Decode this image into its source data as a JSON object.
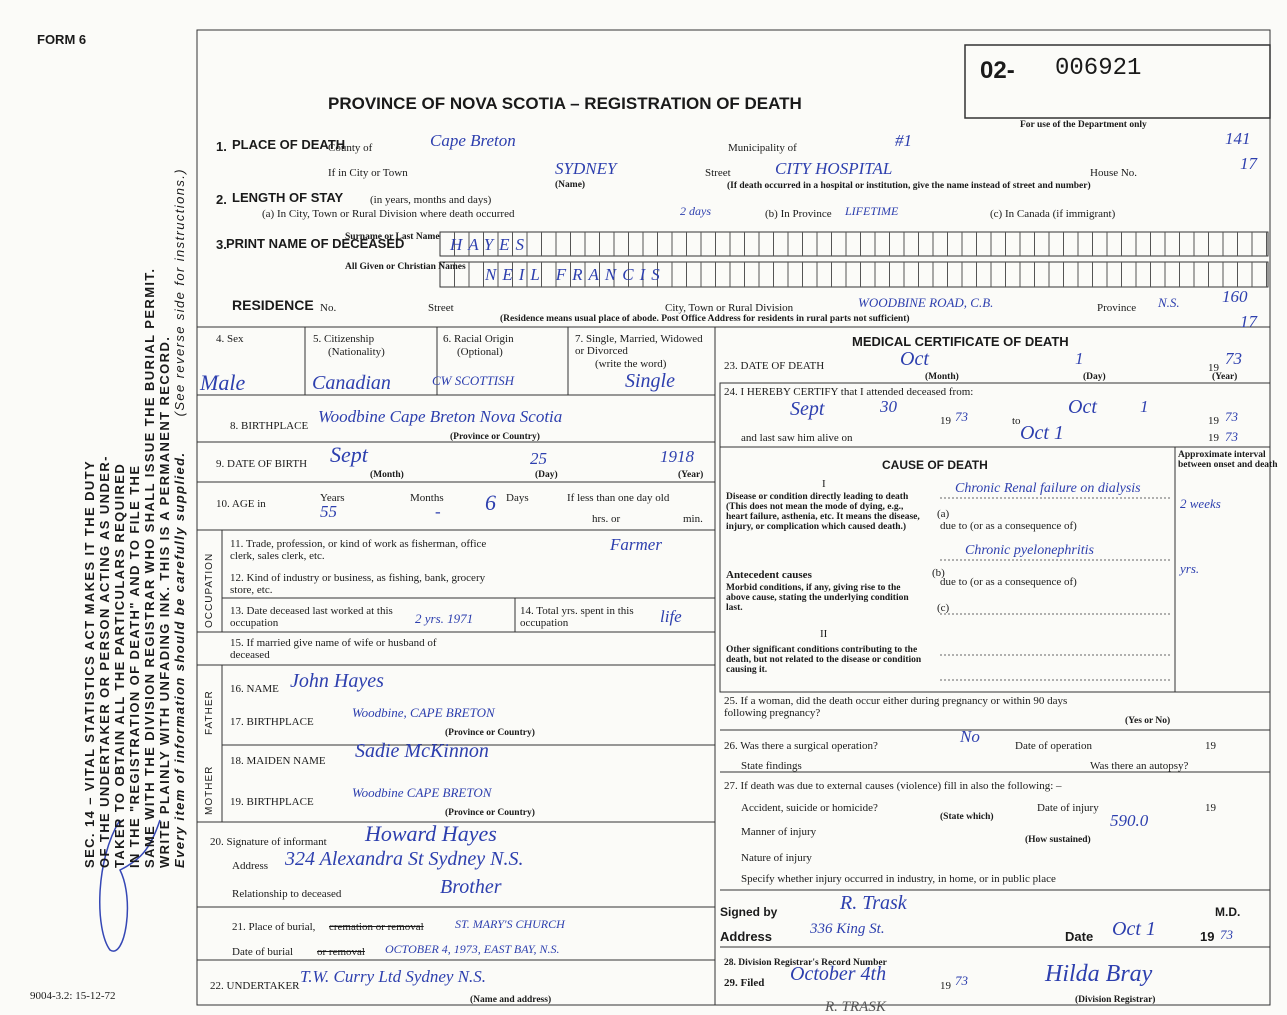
{
  "header": {
    "form": "FORM 6",
    "prefix": "02-",
    "serial": "006921",
    "title": "PROVINCE OF NOVA SCOTIA – REGISTRATION OF DEATH",
    "dept_note": "For use of the Department only",
    "dept_codes": [
      "141",
      "17",
      "160",
      "17"
    ]
  },
  "side": {
    "act": [
      "SEC. 14 – VITAL STATISTICS ACT MAKES IT THE DUTY",
      "OF THE UNDERTAKER OR PERSON ACTING AS UNDER-",
      "TAKER TO OBTAIN ALL THE PARTICULARS REQUIRED",
      "IN THE \"REGISTRATION OF DEATH\" AND TO FILE THE",
      "SAME WITH THE DIVISION REGISTRAR WHO SHALL ISSUE THE BURIAL PERMIT.",
      "WRITE PLAINLY WITH UNFADING INK. THIS IS A PERMANENT RECORD."
    ],
    "supply": "Every item of information should be carefully supplied.",
    "reverse": "(See reverse side for instructions.)",
    "code": "9004-3.2: 15-12-72"
  },
  "place": {
    "num": "1.",
    "heading": "PLACE OF DEATH",
    "county_label": "County of",
    "county": "Cape Breton",
    "municipality_label": "Municipality of",
    "municipality": "#1",
    "city_label": "If in City or Town",
    "city": "SYDNEY",
    "name_note": "(Name)",
    "street_label": "Street",
    "street": "CITY HOSPITAL",
    "house_label": "House No.",
    "hospital_note": "(If death occurred in a hospital or institution, give the name instead of street and number)"
  },
  "stay": {
    "num": "2.",
    "heading": "LENGTH OF STAY",
    "units": "(in years, months and days)",
    "a_label": "(a) In City, Town or Rural Division where death occurred",
    "a_value": "2 days",
    "b_label": "(b) In Province",
    "b_value": "LIFETIME",
    "c_label": "(c) In Canada (if immigrant)"
  },
  "name": {
    "num": "3.",
    "heading": "PRINT NAME OF DECEASED",
    "surname_label": "Surname or Last Name",
    "surname": "HAYES",
    "given_label": "All Given or Christian Names",
    "given": "NEIL FRANCIS"
  },
  "residence": {
    "heading": "RESIDENCE",
    "no_label": "No.",
    "street_label": "Street",
    "city_label": "City, Town or Rural Division",
    "city": "WOODBINE ROAD, C.B.",
    "province_label": "Province",
    "province": "N.S.",
    "note": "(Residence means usual place of abode. Post Office Address for residents in rural parts not sufficient)"
  },
  "personal": {
    "sex_label": "4. Sex",
    "sex": "Male",
    "citizenship_label": "5. Citizenship",
    "nationality_note": "(Nationality)",
    "citizenship": "Canadian",
    "racial_label": "6. Racial Origin",
    "optional_note": "(Optional)",
    "racial": "CW SCOTTISH",
    "marital_label": "7. Single, Married, Widowed or Divorced",
    "write_note": "(write the word)",
    "marital": "Single",
    "birthplace_label": "8. BIRTHPLACE",
    "birthplace": "Woodbine Cape Breton Nova Scotia",
    "birthplace_note": "(Province or Country)",
    "dob_label": "9. DATE OF BIRTH",
    "dob_month": "Sept",
    "dob_day": "25",
    "dob_year": "1918",
    "month_note": "(Month)",
    "day_note": "(Day)",
    "year_note": "(Year)",
    "age_label": "10. AGE in",
    "years_label": "Years",
    "months_label": "Months",
    "days_label": "Days",
    "less_label": "If less than one day old",
    "years": "55",
    "months": "-",
    "days": "6",
    "hrs_label": "hrs. or",
    "min_label": "min.",
    "occupation_label": "OCCUPATION",
    "trade_label": "11. Trade, profession, or kind of work as fisherman, office clerk, sales clerk, etc.",
    "trade": "Farmer",
    "industry_label": "12. Kind of industry or business, as fishing, bank, grocery store, etc.",
    "last_worked_label": "13. Date deceased last worked at this occupation",
    "last_worked": "2 yrs. 1971",
    "total_years_label": "14. Total yrs. spent in this occupation",
    "total_years": "life",
    "spouse_label": "15. If married give name of wife or husband of deceased",
    "father_label": "FATHER",
    "father_name_label": "16. NAME",
    "father_name": "John Hayes",
    "father_birthplace_label": "17. BIRTHPLACE",
    "father_birthplace": "Woodbine, CAPE BRETON",
    "father_note": "(Province or Country)",
    "mother_label": "MOTHER",
    "mother_name_label": "18. MAIDEN NAME",
    "mother_name": "Sadie McKinnon",
    "mother_birthplace_label": "19. BIRTHPLACE",
    "mother_birthplace": "Woodbine CAPE BRETON",
    "mother_note": "(Province or Country)",
    "informant_label": "20. Signature of informant",
    "informant": "Howard Hayes",
    "address_label": "Address",
    "address": "324 Alexandra St   Sydney N.S.",
    "relationship_label": "Relationship to deceased",
    "relationship": "Brother",
    "burial_label": "21. Place of burial,",
    "burial_struck": "cremation or removal",
    "burial": "ST. MARY'S CHURCH",
    "burial_date_label": "Date of burial",
    "burial_date_struck": "or removal",
    "burial_date": "OCTOBER 4, 1973, EAST BAY, N.S.",
    "undertaker_label": "22. UNDERTAKER",
    "undertaker": "T.W. Curry Ltd  Sydney N.S.",
    "undertaker_note": "(Name and address)"
  },
  "medical": {
    "heading": "MEDICAL CERTIFICATE OF DEATH",
    "death_label": "23. DATE OF DEATH",
    "death_month": "Oct",
    "death_day": "1",
    "century": "19",
    "death_year": "73",
    "month_note": "(Month)",
    "day_note": "(Day)",
    "year_note": "(Year)",
    "certify_label": "24. I HEREBY CERTIFY that I attended deceased from:",
    "from_month": "Sept",
    "from_day": "30",
    "from_year": "73",
    "to_label": "to",
    "to_month": "Oct",
    "to_day": "1",
    "to_year": "73",
    "last_saw_label": "and last saw him alive on",
    "last_saw": "Oct 1",
    "last_saw_year": "73",
    "cause_heading": "CAUSE OF DEATH",
    "part1": "I",
    "interval_label": "Approximate interval between onset and death",
    "disease_label": "Disease or condition directly leading to death (This does not mean the mode of dying, e.g., heart failure, asthenia, etc. It means the disease, injury, or complication which caused death.)",
    "a_label": "(a)",
    "a_value": "Chronic Renal failure on dialysis",
    "a_interval": "2 weeks",
    "due_label": "due to (or as a consequence of)",
    "antecedent_label": "Antecedent causes",
    "morbid_label": "Morbid conditions, if any, giving rise to the above cause, stating the underlying condition last.",
    "b_label": "(b)",
    "b_value": "Chronic pyelonephritis",
    "b_interval": "yrs.",
    "c_label": "(c)",
    "part2": "II",
    "other_label": "Other significant conditions contributing to the death, but not related to the disease or condition causing it.",
    "pregnancy_label": "25. If a woman, did the death occur either during pregnancy or within 90 days following pregnancy?",
    "yes_no_note": "(Yes or No)",
    "operation_label": "26. Was there a surgical operation?",
    "operation": "No",
    "operation_date_label": "Date of operation",
    "findings_label": "State findings",
    "autopsy_label": "Was there an autopsy?",
    "external_label": "27. If death was due to external causes (violence) fill in also the following: –",
    "accident_label": "Accident, suicide or homicide?",
    "state_which_note": "(State which)",
    "injury_date_label": "Date of injury",
    "manner_label": "Manner of injury",
    "manner": "590.0",
    "how_note": "(How sustained)",
    "nature_label": "Nature of injury",
    "specify_label": "Specify whether injury occurred in industry, in home, or in public place",
    "signed_label": "Signed by",
    "signed": "R. Trask",
    "md_label": "M.D.",
    "sign_address_label": "Address",
    "sign_address": "336 King St.",
    "sign_date_label": "Date",
    "sign_date": "Oct 1",
    "sign_year": "73",
    "record_label": "28. Division Registrar's Record Number",
    "filed_label": "29. Filed",
    "filed": "October 4th",
    "filed_year": "73",
    "registrar": "Hilda Bray",
    "registrar_note": "(Division Registrar)",
    "stamp": "R. TRASK"
  }
}
